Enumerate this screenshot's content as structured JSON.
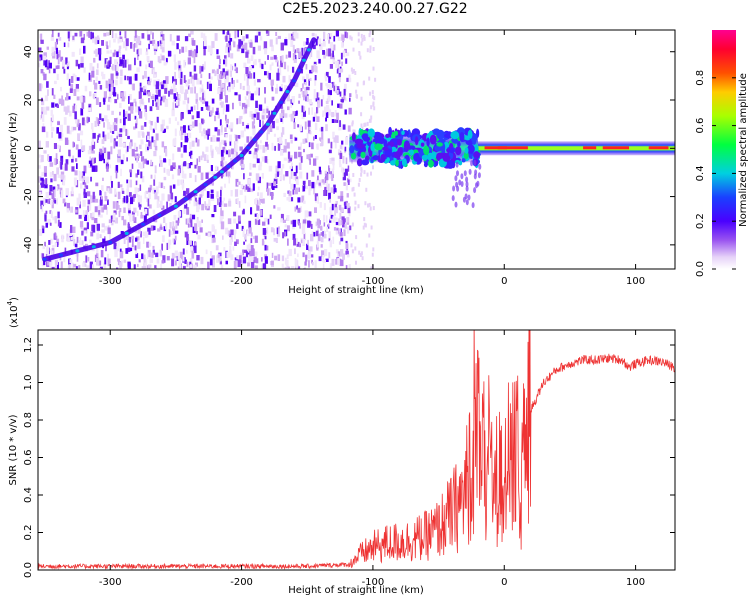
{
  "title": "C2E5.2023.240.00.27.G22",
  "colors": {
    "snr_line": "#ee3333",
    "axis": "#000000"
  },
  "chart_data": [
    {
      "type": "heatmap",
      "xlabel": "Height of straight line (km)",
      "ylabel": "Frequency (Hz)",
      "xlim": [
        -355,
        130
      ],
      "ylim": [
        -50,
        49
      ],
      "xticks": [
        -300,
        -200,
        -100,
        0,
        100
      ],
      "yticks": [
        -40,
        -20,
        0,
        20,
        40
      ],
      "colormap": "rainbow (white-purple-blue-cyan-green-yellow-red-magenta)",
      "features": {
        "chirp_trace": [
          [
            -350,
            -46
          ],
          [
            -300,
            -39
          ],
          [
            -250,
            -24
          ],
          [
            -220,
            -12
          ],
          [
            -200,
            -3
          ],
          [
            -180,
            10
          ],
          [
            -160,
            28
          ],
          [
            -145,
            45
          ]
        ],
        "noise_region_x": [
          -355,
          -118
        ],
        "carrier_band_frequency": 0
      }
    },
    {
      "type": "colorbar",
      "label": "Normalized spectral amplitude",
      "range": [
        0,
        1
      ],
      "ticks": [
        0.0,
        0.2,
        0.4,
        0.6,
        0.8
      ]
    },
    {
      "type": "line",
      "xlabel": "Height of straight line (km)",
      "ylabel": "SNR (10 * v/v)",
      "scale_label": "(x10",
      "scale_exp": "4",
      "xlim": [
        -355,
        130
      ],
      "ylim": [
        0,
        1.28
      ],
      "xticks": [
        -300,
        -200,
        -100,
        0,
        100
      ],
      "yticks": [
        0.0,
        0.2,
        0.4,
        0.6,
        0.8,
        1.0,
        1.2
      ],
      "series": [
        {
          "x": [
            -355,
            -250,
            -150,
            -118,
            -110,
            -100,
            -90,
            -80,
            -70,
            -60,
            -50,
            -40,
            -30,
            -25,
            -20,
            -15,
            -10,
            -5,
            0,
            5,
            10,
            12,
            15,
            20,
            30,
            40,
            50,
            60,
            70,
            80,
            90,
            95,
            100,
            110,
            120,
            130
          ],
          "y": [
            0.02,
            0.02,
            0.02,
            0.03,
            0.08,
            0.12,
            0.14,
            0.15,
            0.16,
            0.18,
            0.22,
            0.3,
            0.4,
            0.6,
            0.8,
            0.55,
            0.5,
            0.48,
            0.5,
            0.55,
            0.65,
            0.2,
            0.7,
            0.85,
            1.0,
            1.07,
            1.1,
            1.12,
            1.12,
            1.13,
            1.12,
            1.08,
            1.1,
            1.12,
            1.11,
            1.08
          ]
        }
      ]
    }
  ]
}
